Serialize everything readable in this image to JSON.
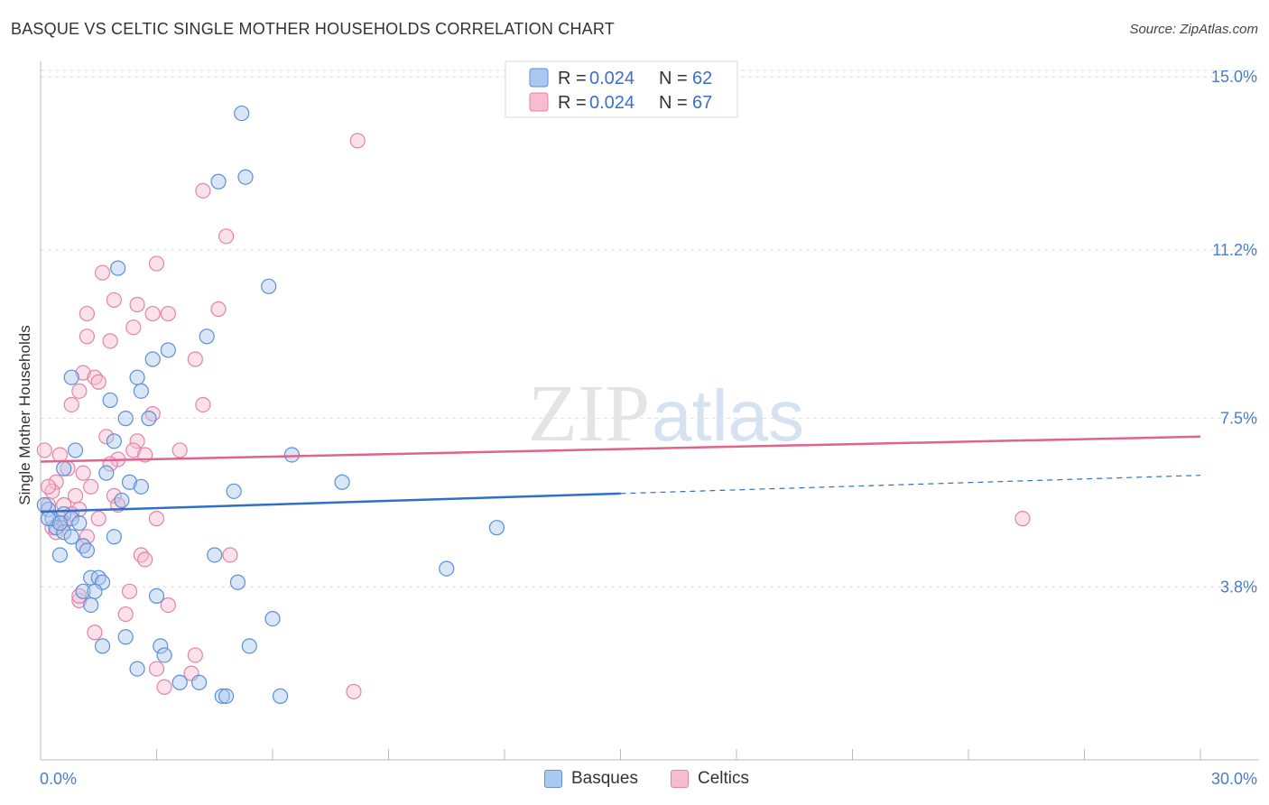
{
  "title": "BASQUE VS CELTIC SINGLE MOTHER HOUSEHOLDS CORRELATION CHART",
  "source": "Source: ZipAtlas.com",
  "watermark": {
    "zip": "ZIP",
    "atlas": "atlas"
  },
  "legend": {
    "rows": [
      {
        "r_label": "R = ",
        "r_value": "0.024",
        "n_label": "N = ",
        "n_value": "62"
      },
      {
        "r_label": "R = ",
        "r_value": "0.024",
        "n_label": "N = ",
        "n_value": "67"
      }
    ]
  },
  "bottom_legend": {
    "basques": "Basques",
    "celtics": "Celtics"
  },
  "colors": {
    "basques_fill": "#aac8f0",
    "basques_stroke": "#5b8fd6",
    "basques_line": "#2f6fc9",
    "celtics_fill": "#f7bcd0",
    "celtics_stroke": "#e483a6",
    "celtics_line": "#e0638f",
    "tick": "#4a7cc9",
    "grid": "#dddddd"
  },
  "chart_data": {
    "type": "scatter",
    "title": "BASQUE VS CELTIC SINGLE MOTHER HOUSEHOLDS CORRELATION CHART",
    "xlabel": "",
    "ylabel": "Single Mother Households",
    "xlim": [
      0,
      30
    ],
    "ylim": [
      0,
      15.5
    ],
    "x_tick_labels": [
      "0.0%",
      "30.0%"
    ],
    "y_ticks": [
      3.8,
      7.5,
      11.2,
      15.0
    ],
    "y_tick_labels": [
      "3.8%",
      "7.5%",
      "11.2%",
      "15.0%"
    ],
    "grid": true,
    "legend_position": "top-center",
    "series": [
      {
        "name": "Basques",
        "r": 0.024,
        "n": 62,
        "trend": {
          "x0": 0,
          "y0": 5.45,
          "x1": 15,
          "y1": 5.85,
          "dashed_to_x": 30,
          "dashed_to_y": 6.25
        },
        "points": [
          [
            5.2,
            14.2
          ],
          [
            5.3,
            12.8
          ],
          [
            4.6,
            12.7
          ],
          [
            2.0,
            10.8
          ],
          [
            5.9,
            10.4
          ],
          [
            4.3,
            9.3
          ],
          [
            3.3,
            9.0
          ],
          [
            2.9,
            8.8
          ],
          [
            0.8,
            8.4
          ],
          [
            2.5,
            8.4
          ],
          [
            2.6,
            8.1
          ],
          [
            1.8,
            7.9
          ],
          [
            2.2,
            7.5
          ],
          [
            2.8,
            7.5
          ],
          [
            1.9,
            7.0
          ],
          [
            0.9,
            6.8
          ],
          [
            6.5,
            6.7
          ],
          [
            0.6,
            6.4
          ],
          [
            1.7,
            6.3
          ],
          [
            2.3,
            6.1
          ],
          [
            2.6,
            6.0
          ],
          [
            5.0,
            5.9
          ],
          [
            7.8,
            6.1
          ],
          [
            2.1,
            5.7
          ],
          [
            0.2,
            5.5
          ],
          [
            0.3,
            5.3
          ],
          [
            0.6,
            5.4
          ],
          [
            0.8,
            5.3
          ],
          [
            1.0,
            5.2
          ],
          [
            0.4,
            5.1
          ],
          [
            0.6,
            5.0
          ],
          [
            0.8,
            4.9
          ],
          [
            11.8,
            5.1
          ],
          [
            1.9,
            4.9
          ],
          [
            1.1,
            4.7
          ],
          [
            1.2,
            4.6
          ],
          [
            0.5,
            4.5
          ],
          [
            4.5,
            4.5
          ],
          [
            10.5,
            4.2
          ],
          [
            1.3,
            4.0
          ],
          [
            1.5,
            4.0
          ],
          [
            1.6,
            3.9
          ],
          [
            5.1,
            3.9
          ],
          [
            1.1,
            3.7
          ],
          [
            1.4,
            3.7
          ],
          [
            3.0,
            3.6
          ],
          [
            1.3,
            3.4
          ],
          [
            6.0,
            3.1
          ],
          [
            2.2,
            2.7
          ],
          [
            1.6,
            2.5
          ],
          [
            3.1,
            2.5
          ],
          [
            5.4,
            2.5
          ],
          [
            3.2,
            2.3
          ],
          [
            2.5,
            2.0
          ],
          [
            3.6,
            1.7
          ],
          [
            4.1,
            1.7
          ],
          [
            4.7,
            1.4
          ],
          [
            4.8,
            1.4
          ],
          [
            6.2,
            1.4
          ],
          [
            0.1,
            5.6
          ],
          [
            0.2,
            5.3
          ],
          [
            0.5,
            5.2
          ]
        ]
      },
      {
        "name": "Celtics",
        "r": 0.024,
        "n": 67,
        "trend": {
          "x0": 0,
          "y0": 6.55,
          "x1": 30,
          "y1": 7.1
        },
        "points": [
          [
            8.2,
            13.6
          ],
          [
            4.2,
            12.5
          ],
          [
            4.8,
            11.5
          ],
          [
            3.0,
            10.9
          ],
          [
            1.6,
            10.7
          ],
          [
            1.9,
            10.1
          ],
          [
            2.5,
            10.0
          ],
          [
            4.6,
            9.9
          ],
          [
            1.2,
            9.8
          ],
          [
            2.9,
            9.8
          ],
          [
            3.3,
            9.8
          ],
          [
            2.4,
            9.5
          ],
          [
            1.2,
            9.3
          ],
          [
            1.8,
            9.2
          ],
          [
            4.0,
            8.8
          ],
          [
            1.1,
            8.5
          ],
          [
            1.4,
            8.4
          ],
          [
            1.5,
            8.3
          ],
          [
            1.0,
            8.1
          ],
          [
            0.8,
            7.8
          ],
          [
            4.2,
            7.8
          ],
          [
            2.9,
            7.6
          ],
          [
            1.7,
            7.1
          ],
          [
            2.5,
            7.0
          ],
          [
            2.4,
            6.8
          ],
          [
            2.7,
            6.7
          ],
          [
            3.6,
            6.8
          ],
          [
            2.0,
            6.6
          ],
          [
            1.8,
            6.5
          ],
          [
            1.1,
            6.3
          ],
          [
            0.7,
            6.4
          ],
          [
            0.4,
            6.1
          ],
          [
            0.3,
            5.9
          ],
          [
            1.3,
            6.0
          ],
          [
            0.9,
            5.8
          ],
          [
            0.6,
            5.6
          ],
          [
            0.2,
            5.6
          ],
          [
            1.0,
            5.5
          ],
          [
            0.8,
            5.4
          ],
          [
            1.9,
            5.8
          ],
          [
            2.0,
            5.6
          ],
          [
            0.5,
            5.3
          ],
          [
            1.5,
            5.3
          ],
          [
            3.0,
            5.3
          ],
          [
            0.6,
            5.2
          ],
          [
            0.3,
            5.1
          ],
          [
            0.4,
            5.0
          ],
          [
            1.1,
            4.7
          ],
          [
            2.6,
            4.5
          ],
          [
            2.7,
            4.4
          ],
          [
            4.9,
            4.5
          ],
          [
            25.4,
            5.3
          ],
          [
            2.3,
            3.7
          ],
          [
            1.0,
            3.5
          ],
          [
            3.3,
            3.4
          ],
          [
            2.2,
            3.2
          ],
          [
            1.4,
            2.8
          ],
          [
            4.0,
            2.3
          ],
          [
            3.0,
            2.0
          ],
          [
            3.9,
            1.9
          ],
          [
            3.2,
            1.6
          ],
          [
            8.1,
            1.5
          ],
          [
            1.0,
            3.6
          ],
          [
            0.2,
            6.0
          ],
          [
            0.1,
            6.8
          ],
          [
            0.5,
            6.7
          ],
          [
            1.2,
            4.9
          ]
        ]
      }
    ]
  }
}
